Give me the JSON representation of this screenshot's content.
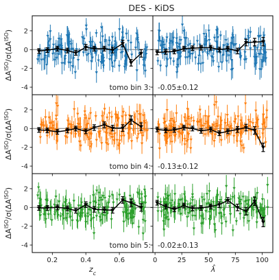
{
  "chart_data": {
    "type": "scatter",
    "title": "DES - KiDS",
    "ylabel": "ΔA^{ISO}/σ(ΔA^{ISO})",
    "ylim": [
      -4.8,
      3.6
    ],
    "yticks": [
      -4,
      -2,
      0,
      2
    ],
    "grid": false,
    "reference_line": 0,
    "columns": [
      {
        "xlabel": "z_c",
        "xlim": [
          0.08,
          0.8
        ],
        "xticks": [
          0.2,
          0.4,
          0.6
        ],
        "xtick_labels": [
          "0.2",
          "0.4",
          "0.6"
        ],
        "binned_x": [
          0.12,
          0.17,
          0.23,
          0.29,
          0.34,
          0.4,
          0.45,
          0.51,
          0.56,
          0.62,
          0.67,
          0.73
        ]
      },
      {
        "xlabel": "λ̂",
        "xlim": [
          -2,
          110
        ],
        "xticks": [
          0,
          25,
          50,
          75,
          100
        ],
        "xtick_labels": [
          "0",
          "25",
          "50",
          "75",
          "100"
        ],
        "binned_x": [
          2,
          10,
          18,
          27,
          35,
          43,
          52,
          60,
          68,
          77,
          85,
          93,
          101
        ]
      }
    ],
    "rows": [
      {
        "label": "tomo bin 3:",
        "result": "-0.05±0.12",
        "color": "#1f77b4",
        "left_binned_y": [
          -0.15,
          -0.05,
          0.1,
          -0.1,
          -0.35,
          0.25,
          0.1,
          0.1,
          -0.05,
          0.65,
          -1.4,
          -0.4
        ],
        "left_binned_err": [
          0.25,
          0.25,
          0.25,
          0.25,
          0.25,
          0.3,
          0.25,
          0.25,
          0.3,
          0.35,
          0.35,
          0.4
        ],
        "right_binned_y": [
          -0.3,
          -0.25,
          -0.2,
          0.1,
          0.15,
          0.2,
          0.2,
          0.0,
          0.1,
          -0.15,
          0.75,
          0.8,
          0.85
        ],
        "right_binned_err": [
          0.25,
          0.25,
          0.25,
          0.25,
          0.25,
          0.25,
          0.25,
          0.25,
          0.25,
          0.3,
          0.35,
          0.4,
          0.45
        ]
      },
      {
        "label": "tomo bin 4:",
        "result": "-0.13±0.12",
        "color": "#ff7f0e",
        "left_binned_y": [
          -0.15,
          -0.2,
          -0.35,
          -0.2,
          0.0,
          -0.3,
          0.1,
          0.4,
          0.05,
          0.05,
          0.9,
          0.2
        ],
        "left_binned_err": [
          0.25,
          0.25,
          0.25,
          0.25,
          0.25,
          0.25,
          0.3,
          0.3,
          0.3,
          0.35,
          0.45,
          0.4
        ],
        "right_binned_y": [
          -0.1,
          -0.2,
          -0.15,
          0.1,
          0.0,
          -0.25,
          -0.1,
          -0.5,
          -0.3,
          -0.1,
          0.1,
          -0.2,
          -2.0
        ],
        "right_binned_err": [
          0.25,
          0.25,
          0.25,
          0.25,
          0.25,
          0.25,
          0.25,
          0.25,
          0.25,
          0.3,
          0.35,
          0.4,
          0.45
        ]
      },
      {
        "label": "tomo bin 5:",
        "result": "-0.02±0.13",
        "color": "#2ca02c",
        "left_binned_y": [
          -0.05,
          -0.05,
          0.0,
          -0.1,
          -0.35,
          0.3,
          -0.2,
          -0.25,
          -0.3,
          0.8,
          0.5,
          0.0
        ],
        "left_binned_err": [
          0.25,
          0.25,
          0.25,
          0.25,
          0.25,
          0.3,
          0.3,
          0.3,
          0.3,
          0.35,
          0.4,
          0.4
        ],
        "right_binned_y": [
          0.5,
          0.1,
          -0.2,
          0.2,
          -0.1,
          -0.05,
          0.1,
          0.3,
          0.75,
          0.0,
          -0.4,
          0.65,
          -1.55
        ],
        "right_binned_err": [
          0.25,
          0.25,
          0.25,
          0.25,
          0.25,
          0.25,
          0.25,
          0.3,
          0.3,
          0.35,
          0.4,
          0.45,
          0.5
        ]
      }
    ]
  }
}
